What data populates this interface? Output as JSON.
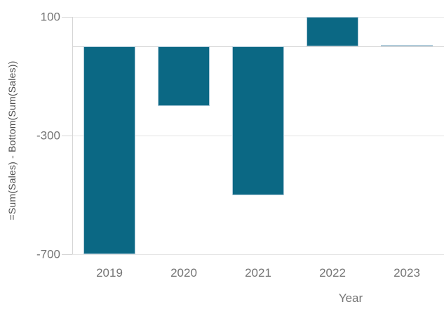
{
  "chart_data": {
    "type": "bar",
    "title": "",
    "categories": [
      "2019",
      "2020",
      "2021",
      "2022",
      "2023"
    ],
    "values": [
      -700,
      -200,
      -500,
      100,
      5
    ],
    "series_name": "Sum(Sales) - Bottom(Sum(Sales))",
    "xlabel": "Year",
    "ylabel": "=Sum(Sales) - Bottom(Sum(Sales))",
    "yticks": [
      100,
      -300,
      -700
    ],
    "ylim": [
      -740,
      115
    ],
    "grid": true,
    "legend_position": "none",
    "zero_line": true
  },
  "style": {
    "bar_color": "#0b6884",
    "bar_border_color": "#b0cbda",
    "gridline_color": "#e5e5e5",
    "zero_line_color": "#d6d6d6",
    "axis_line_color": "#d5d5d5",
    "tick_label_color": "#757575",
    "category_label_color": "#757575",
    "axis_title_color": "#4f4f4f",
    "background_color": "#ffffff"
  }
}
